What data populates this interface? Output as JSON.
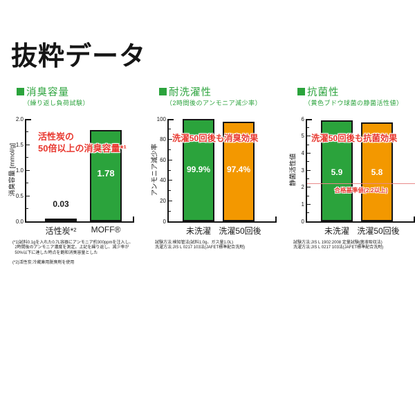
{
  "page": {
    "title": "抜粋データ"
  },
  "colors": {
    "green": "#2ba33c",
    "orange": "#f39800",
    "red": "#e8382f",
    "threshold": "#e98b8b",
    "axis": "#151515",
    "background": "#ffffff"
  },
  "chart_data": [
    {
      "type": "bar",
      "header": "消臭容量",
      "subtitle": "（繰り返し負荷試験）",
      "ylabel": "消臭容量 [mmol/g]",
      "ylim": [
        0,
        2
      ],
      "yticks": [
        0,
        0.5,
        1,
        1.5,
        2
      ],
      "ytick_labels": [
        "0.0",
        "0.5",
        "1.0",
        "1.5",
        "2.0"
      ],
      "minor_ticks": [
        0.25,
        0.75,
        1.25,
        1.75
      ],
      "categories": [
        "活性炭*²",
        "MOFF®"
      ],
      "values": [
        0.03,
        1.78
      ],
      "bar_labels": [
        "0.03",
        "1.78"
      ],
      "bar_colors": [
        "#ffffff",
        "#2ba33c"
      ],
      "bar_label_colors": [
        "#1a1a1a",
        "#ffffff"
      ],
      "annotation": "活性炭の\n50倍以上の消臭容量*¹",
      "footnotes": [
        "(*1)試料0.1gを入れた0.7L容器にアンモニア約300ppmを注入し、",
        "  2時間後のアンモニア濃度を測定。上記を繰り返し、減少率が",
        "  50%以下に達した時点を飽和消臭容量とした",
        "",
        "(*2)活性炭:冷蔵庫用脱臭剤を使用"
      ]
    },
    {
      "type": "bar",
      "header": "耐洗濯性",
      "subtitle": "（2時間後のアンモニア減少率）",
      "ylabel": "アンモニア減少率",
      "ylim": [
        0,
        100
      ],
      "yticks": [
        0,
        20,
        40,
        60,
        80,
        100
      ],
      "ytick_labels": [
        "0",
        "20",
        "40",
        "60",
        "80",
        "100"
      ],
      "minor_ticks": [
        10,
        30,
        50,
        70,
        90
      ],
      "categories": [
        "未洗濯",
        "洗濯50回後"
      ],
      "values": [
        99.9,
        97.4
      ],
      "bar_labels": [
        "99.9%",
        "97.4%"
      ],
      "bar_colors": [
        "#2ba33c",
        "#f39800"
      ],
      "bar_label_colors": [
        "#ffffff",
        "#ffffff"
      ],
      "annotation": "洗濯50回後も消臭効果",
      "footnotes": [
        "試験方法:検知管法(試料1.0g、ガス量1.0L)",
        "洗濯方法:JIS L 0217 103法(JAFET標準配合洗剤)"
      ]
    },
    {
      "type": "bar",
      "header": "抗菌性",
      "subtitle": "（黄色ブドウ球菌の静菌活性値）",
      "ylabel": "静菌活性値",
      "ylim": [
        0,
        6
      ],
      "yticks": [
        0,
        1,
        2,
        3,
        4,
        5,
        6
      ],
      "ytick_labels": [
        "0",
        "1",
        "2",
        "3",
        "4",
        "5",
        "6"
      ],
      "minor_ticks": [
        0.5,
        1.5,
        2.5,
        3.5,
        4.5,
        5.5
      ],
      "categories": [
        "未洗濯",
        "洗濯50回後"
      ],
      "values": [
        5.9,
        5.8
      ],
      "bar_labels": [
        "5.9",
        "5.8"
      ],
      "bar_label_colors": [
        "#ffffff",
        "#ffffff"
      ],
      "bar_colors": [
        "#2ba33c",
        "#f39800"
      ],
      "annotation": "洗濯50回後も抗菌効果",
      "threshold": {
        "value": 2.2,
        "label": "合格基準値(2.2以上)"
      },
      "footnotes": [
        "試験方法:JIS L 1902:2008 定量試験(菌液吸収法)",
        "洗濯方法:JIS L 0217 103法(JAFET標準配合洗剤)"
      ]
    }
  ]
}
